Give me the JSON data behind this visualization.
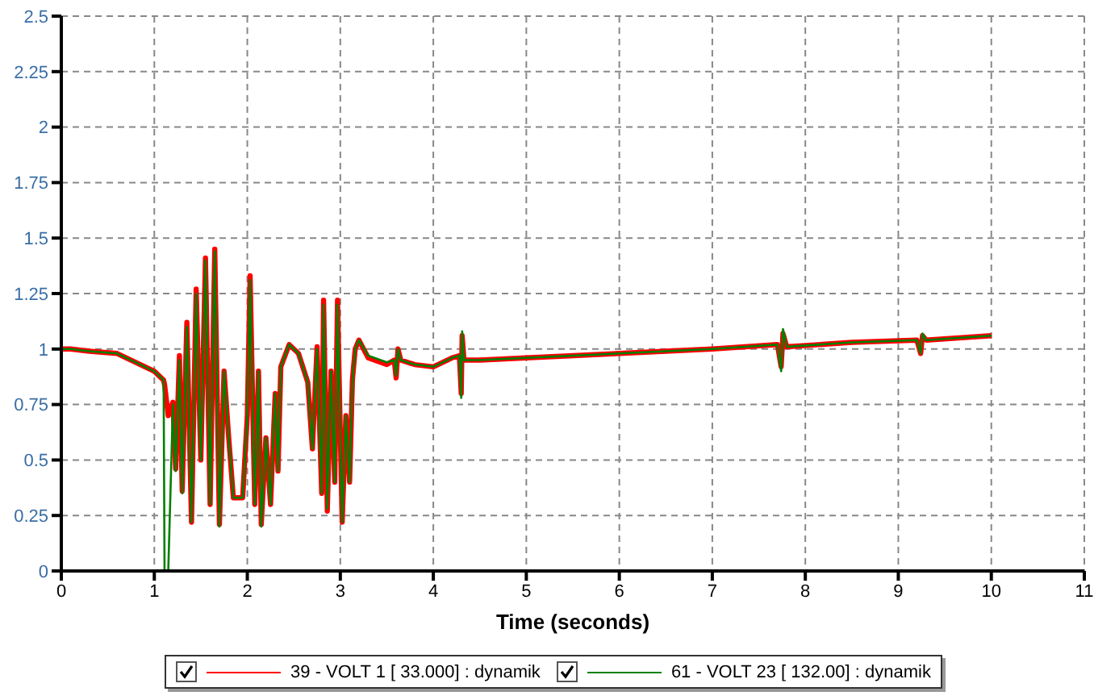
{
  "chart_data": {
    "type": "line",
    "xlabel": "Time (seconds)",
    "xlim": [
      0,
      11
    ],
    "xticks": [
      0,
      1,
      2,
      3,
      4,
      5,
      6,
      7,
      8,
      9,
      10,
      11
    ],
    "ylim": [
      0,
      2.5
    ],
    "yticks": [
      0,
      0.25,
      0.5,
      0.75,
      1,
      1.25,
      1.5,
      1.75,
      2,
      2.25,
      2.5
    ],
    "grid": true,
    "legend": "bottom",
    "marker": "none",
    "line_style": "solid",
    "x": [
      0,
      0.1,
      0.3,
      0.6,
      0.8,
      1.0,
      1.1,
      1.11,
      1.15,
      1.2,
      1.23,
      1.27,
      1.3,
      1.35,
      1.4,
      1.45,
      1.5,
      1.55,
      1.6,
      1.65,
      1.7,
      1.75,
      1.8,
      1.85,
      1.95,
      2.0,
      2.03,
      2.08,
      2.12,
      2.15,
      2.2,
      2.25,
      2.3,
      2.33,
      2.36,
      2.45,
      2.55,
      2.65,
      2.7,
      2.75,
      2.8,
      2.82,
      2.86,
      2.9,
      2.94,
      2.97,
      3.02,
      3.06,
      3.1,
      3.13,
      3.16,
      3.2,
      3.3,
      3.5,
      3.58,
      3.6,
      3.62,
      3.65,
      3.8,
      4.0,
      4.2,
      4.28,
      4.3,
      4.31,
      4.33,
      4.5,
      5,
      6,
      7,
      7.7,
      7.74,
      7.76,
      7.8,
      8.5,
      9.2,
      9.24,
      9.26,
      9.3,
      10
    ],
    "series": [
      {
        "name": "39 - VOLT 1 [ 33.000] : dynamik",
        "color": "#ff0000",
        "values": [
          1.0,
          1.0,
          0.99,
          0.98,
          0.94,
          0.9,
          0.86,
          0.84,
          0.7,
          0.76,
          0.46,
          0.97,
          0.36,
          1.12,
          0.22,
          1.27,
          0.5,
          1.41,
          0.3,
          1.45,
          0.21,
          0.9,
          0.6,
          0.33,
          0.33,
          0.7,
          1.33,
          0.3,
          0.9,
          0.21,
          0.6,
          0.3,
          0.8,
          0.45,
          0.92,
          1.02,
          0.98,
          0.85,
          0.55,
          1.01,
          0.35,
          1.22,
          0.27,
          0.9,
          0.4,
          1.22,
          0.22,
          0.7,
          0.4,
          0.86,
          1.0,
          1.04,
          0.96,
          0.93,
          0.95,
          0.87,
          1.0,
          0.95,
          0.93,
          0.92,
          0.96,
          0.97,
          0.8,
          1.06,
          0.95,
          0.95,
          0.96,
          0.98,
          1.0,
          1.02,
          0.92,
          1.07,
          1.01,
          1.03,
          1.04,
          0.98,
          1.06,
          1.04,
          1.06
        ]
      },
      {
        "name": "61 - VOLT 23 [ 132.00] : dynamik",
        "color": "#008000",
        "values": [
          1.0,
          1.0,
          0.99,
          0.98,
          0.94,
          0.9,
          0.86,
          0,
          0,
          0.75,
          0.45,
          0.95,
          0.35,
          1.1,
          0.22,
          1.25,
          0.5,
          1.4,
          0.3,
          1.44,
          0.2,
          0.9,
          0.6,
          0.33,
          0.33,
          0.7,
          1.31,
          0.3,
          0.9,
          0.2,
          0.6,
          0.3,
          0.8,
          0.45,
          0.92,
          1.02,
          0.98,
          0.85,
          0.55,
          1.0,
          0.35,
          1.2,
          0.28,
          0.9,
          0.4,
          1.2,
          0.22,
          0.7,
          0.4,
          0.85,
          1.0,
          1.04,
          0.97,
          0.94,
          0.95,
          0.88,
          1.0,
          0.95,
          0.93,
          0.92,
          0.96,
          0.97,
          0.78,
          1.08,
          0.95,
          0.95,
          0.96,
          0.98,
          1.0,
          1.02,
          0.9,
          1.09,
          1.01,
          1.03,
          1.04,
          0.98,
          1.07,
          1.04,
          1.06
        ]
      }
    ]
  }
}
